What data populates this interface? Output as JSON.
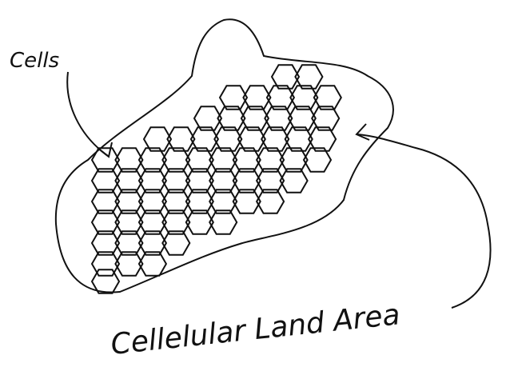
{
  "labels": {
    "cells": "Cells",
    "area": "Cellelular Land Area"
  },
  "colors": {
    "ink": "#111111",
    "background": "#ffffff"
  }
}
